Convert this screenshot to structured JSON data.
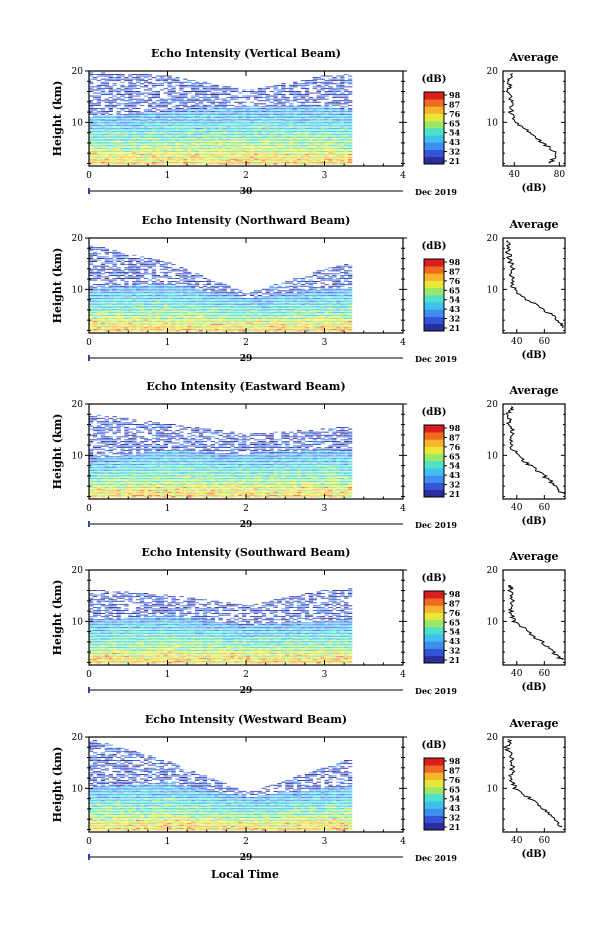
{
  "figure": {
    "x_label": "Local Time",
    "date_label": "Dec 2019"
  },
  "colorbar": {
    "unit": "(dB)",
    "ticks": [
      "98",
      "87",
      "76",
      "65",
      "54",
      "43",
      "32",
      "21"
    ],
    "colors": [
      "#2b2d9c",
      "#3453d6",
      "#3d8ef0",
      "#3fc0ee",
      "#4ee0c8",
      "#9ae86a",
      "#e8e83a",
      "#f7b52c",
      "#f06a22",
      "#d81e1e"
    ]
  },
  "chart_data": [
    {
      "type": "heatmap",
      "title": "Echo Intensity (Vertical Beam)",
      "ylabel": "Height (km)",
      "xlim": [
        0,
        4
      ],
      "ylim": [
        1.5,
        20
      ],
      "x_ticks": [
        "0",
        "1",
        "2",
        "3",
        "4"
      ],
      "y_ticks": [
        "10",
        "20"
      ],
      "day_label": "30",
      "data_x_range": [
        0,
        3.35
      ],
      "pattern": [
        [
          19.5,
          19,
          16,
          19,
          19.5
        ],
        [
          11,
          12,
          13,
          13,
          10
        ]
      ],
      "profile": {
        "title": "Average",
        "xlabel": "(dB)",
        "xlim": [
          30,
          85
        ],
        "x_ticks": [
          "40",
          "80"
        ],
        "y_ticks": [
          "10",
          "20"
        ],
        "points": [
          [
            37,
            19.5
          ],
          [
            36,
            18
          ],
          [
            35,
            16
          ],
          [
            38,
            14
          ],
          [
            37,
            12
          ],
          [
            40,
            10
          ],
          [
            55,
            8
          ],
          [
            65,
            6
          ],
          [
            78,
            4
          ],
          [
            72,
            2
          ]
        ]
      }
    },
    {
      "type": "heatmap",
      "title": "Echo Intensity (Northward Beam)",
      "ylabel": "Height (km)",
      "xlim": [
        0,
        4
      ],
      "ylim": [
        1.5,
        20
      ],
      "x_ticks": [
        "0",
        "1",
        "2",
        "3",
        "4"
      ],
      "y_ticks": [
        "10",
        "20"
      ],
      "day_label": "29",
      "data_x_range": [
        0,
        3.35
      ],
      "pattern": [
        [
          18.5,
          15,
          9,
          14,
          17
        ],
        [
          10,
          11,
          8,
          10,
          10
        ]
      ],
      "profile": {
        "title": "Average",
        "xlabel": "(dB)",
        "xlim": [
          30,
          75
        ],
        "x_ticks": [
          "40",
          "60"
        ],
        "y_ticks": [
          "10",
          "20"
        ],
        "points": [
          [
            34,
            19.5
          ],
          [
            33,
            18
          ],
          [
            35,
            16
          ],
          [
            37,
            14
          ],
          [
            36,
            12
          ],
          [
            38,
            10
          ],
          [
            48,
            8
          ],
          [
            60,
            6
          ],
          [
            70,
            4
          ],
          [
            73,
            2.5
          ]
        ]
      }
    },
    {
      "type": "heatmap",
      "title": "Echo Intensity (Eastward Beam)",
      "ylabel": "Height (km)",
      "xlim": [
        0,
        4
      ],
      "ylim": [
        1.5,
        20
      ],
      "x_ticks": [
        "0",
        "1",
        "2",
        "3",
        "4"
      ],
      "y_ticks": [
        "10",
        "20"
      ],
      "day_label": "29",
      "data_x_range": [
        0,
        3.35
      ],
      "pattern": [
        [
          18,
          16,
          14,
          15,
          17
        ],
        [
          9,
          11,
          10,
          11,
          9
        ]
      ],
      "profile": {
        "title": "Average",
        "xlabel": "(dB)",
        "xlim": [
          30,
          75
        ],
        "x_ticks": [
          "40",
          "60"
        ],
        "y_ticks": [
          "10",
          "20"
        ],
        "points": [
          [
            36,
            19.5
          ],
          [
            34,
            18
          ],
          [
            35,
            16
          ],
          [
            37,
            14
          ],
          [
            36,
            12
          ],
          [
            40,
            10
          ],
          [
            50,
            8
          ],
          [
            60,
            6
          ],
          [
            68,
            4
          ],
          [
            74,
            2.5
          ]
        ]
      }
    },
    {
      "type": "heatmap",
      "title": "Echo Intensity (Southward Beam)",
      "ylabel": "Height (km)",
      "xlim": [
        0,
        4
      ],
      "ylim": [
        1.5,
        20
      ],
      "x_ticks": [
        "0",
        "1",
        "2",
        "3",
        "4"
      ],
      "y_ticks": [
        "10",
        "20"
      ],
      "day_label": "29",
      "data_x_range": [
        0,
        3.35
      ],
      "pattern": [
        [
          16,
          15,
          13,
          16,
          17
        ],
        [
          10,
          11,
          9,
          10,
          10
        ]
      ],
      "profile": {
        "title": "Average",
        "xlabel": "(dB)",
        "xlim": [
          30,
          75
        ],
        "x_ticks": [
          "40",
          "60"
        ],
        "y_ticks": [
          "10",
          "20"
        ],
        "points": [
          [
            36,
            17
          ],
          [
            35,
            16
          ],
          [
            37,
            14
          ],
          [
            36,
            12
          ],
          [
            38,
            10
          ],
          [
            48,
            8
          ],
          [
            58,
            6
          ],
          [
            66,
            4
          ],
          [
            73,
            2.5
          ]
        ]
      }
    },
    {
      "type": "heatmap",
      "title": "Echo Intensity (Westward Beam)",
      "ylabel": "Height (km)",
      "xlim": [
        0,
        4
      ],
      "ylim": [
        1.5,
        20
      ],
      "x_ticks": [
        "0",
        "1",
        "2",
        "3",
        "4"
      ],
      "y_ticks": [
        "10",
        "20"
      ],
      "day_label": "29",
      "data_x_range": [
        0,
        3.35
      ],
      "pattern": [
        [
          19.5,
          15,
          9,
          14,
          19
        ],
        [
          10,
          11,
          8,
          10,
          10
        ]
      ],
      "profile": {
        "title": "Average",
        "xlabel": "(dB)",
        "xlim": [
          30,
          75
        ],
        "x_ticks": [
          "40",
          "60"
        ],
        "y_ticks": [
          "10",
          "20"
        ],
        "points": [
          [
            35,
            19.5
          ],
          [
            33,
            18
          ],
          [
            36,
            16
          ],
          [
            37,
            14
          ],
          [
            36,
            12
          ],
          [
            39,
            10
          ],
          [
            50,
            8
          ],
          [
            60,
            6
          ],
          [
            68,
            4
          ],
          [
            73,
            2.5
          ]
        ]
      }
    }
  ]
}
